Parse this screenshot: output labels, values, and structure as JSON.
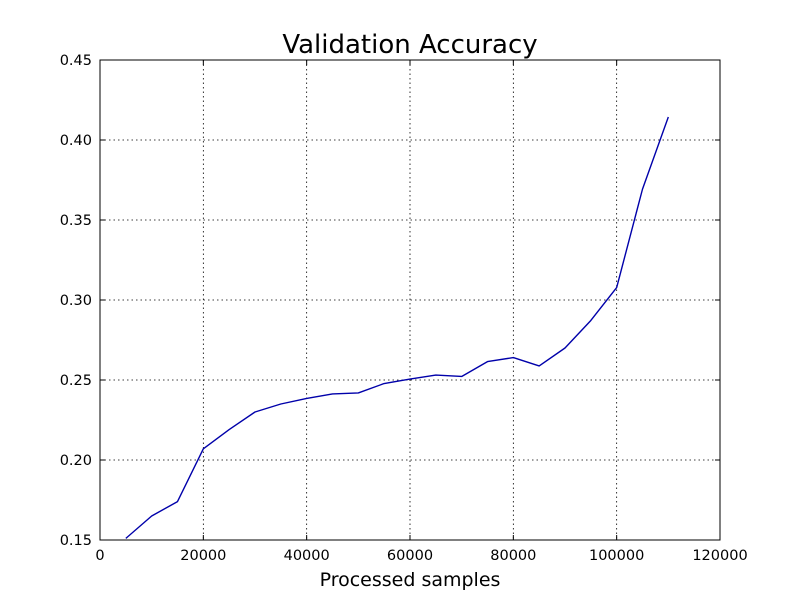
{
  "chart_data": {
    "type": "line",
    "title": "Validation Accuracy",
    "xlabel": "Processed samples",
    "ylabel": "",
    "xlim": [
      0,
      120000
    ],
    "ylim": [
      0.15,
      0.45
    ],
    "grid": true,
    "xticks": [
      0,
      20000,
      40000,
      60000,
      80000,
      100000,
      120000
    ],
    "xtick_labels": [
      "0",
      "20000",
      "40000",
      "60000",
      "80000",
      "100000",
      "120000"
    ],
    "yticks": [
      0.15,
      0.2,
      0.25,
      0.3,
      0.35,
      0.4,
      0.45
    ],
    "ytick_labels": [
      "0.15",
      "0.20",
      "0.25",
      "0.30",
      "0.35",
      "0.40",
      "0.45"
    ],
    "series": [
      {
        "color": "#0000aa",
        "x": [
          5000,
          10000,
          15000,
          20000,
          25000,
          30000,
          35000,
          40000,
          45000,
          50000,
          55000,
          60000,
          65000,
          70000,
          75000,
          80000,
          85000,
          90000,
          95000,
          100000,
          105000,
          110000
        ],
        "y": [
          0.151,
          0.165,
          0.174,
          0.207,
          0.219,
          0.23,
          0.235,
          0.2385,
          0.2413,
          0.2419,
          0.2478,
          0.2506,
          0.2531,
          0.2522,
          0.2615,
          0.264,
          0.2588,
          0.27,
          0.2872,
          0.3078,
          0.3693,
          0.4144
        ]
      }
    ]
  }
}
